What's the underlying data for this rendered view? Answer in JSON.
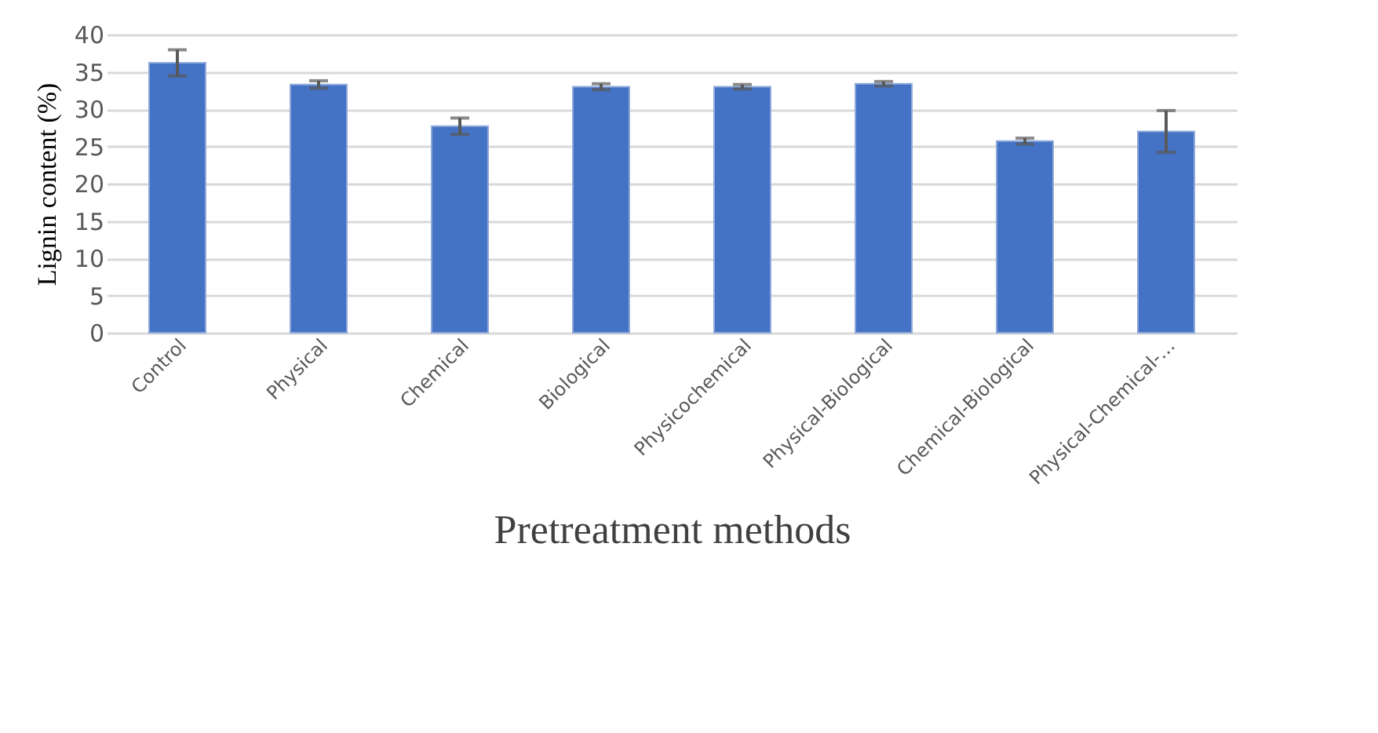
{
  "chart_data": {
    "type": "bar",
    "xlabel": "Pretreatment methods",
    "ylabel": "Lignin content (%)",
    "categories": [
      "Control",
      "Physical",
      "Chemical",
      "Biological",
      "Physicochemical",
      "Physical-Biological",
      "Chemical-Biological",
      "Physical-Chemical-…"
    ],
    "values": [
      36.2,
      33.3,
      27.7,
      33.0,
      33.0,
      33.4,
      25.7,
      27.0
    ],
    "errors": [
      1.75,
      0.5,
      1.1,
      0.4,
      0.3,
      0.3,
      0.4,
      2.8
    ],
    "color": "#4472c4",
    "ylim": [
      0,
      40
    ],
    "yticks": [
      0,
      5,
      10,
      15,
      20,
      25,
      30,
      35,
      40
    ],
    "grid": "y"
  }
}
